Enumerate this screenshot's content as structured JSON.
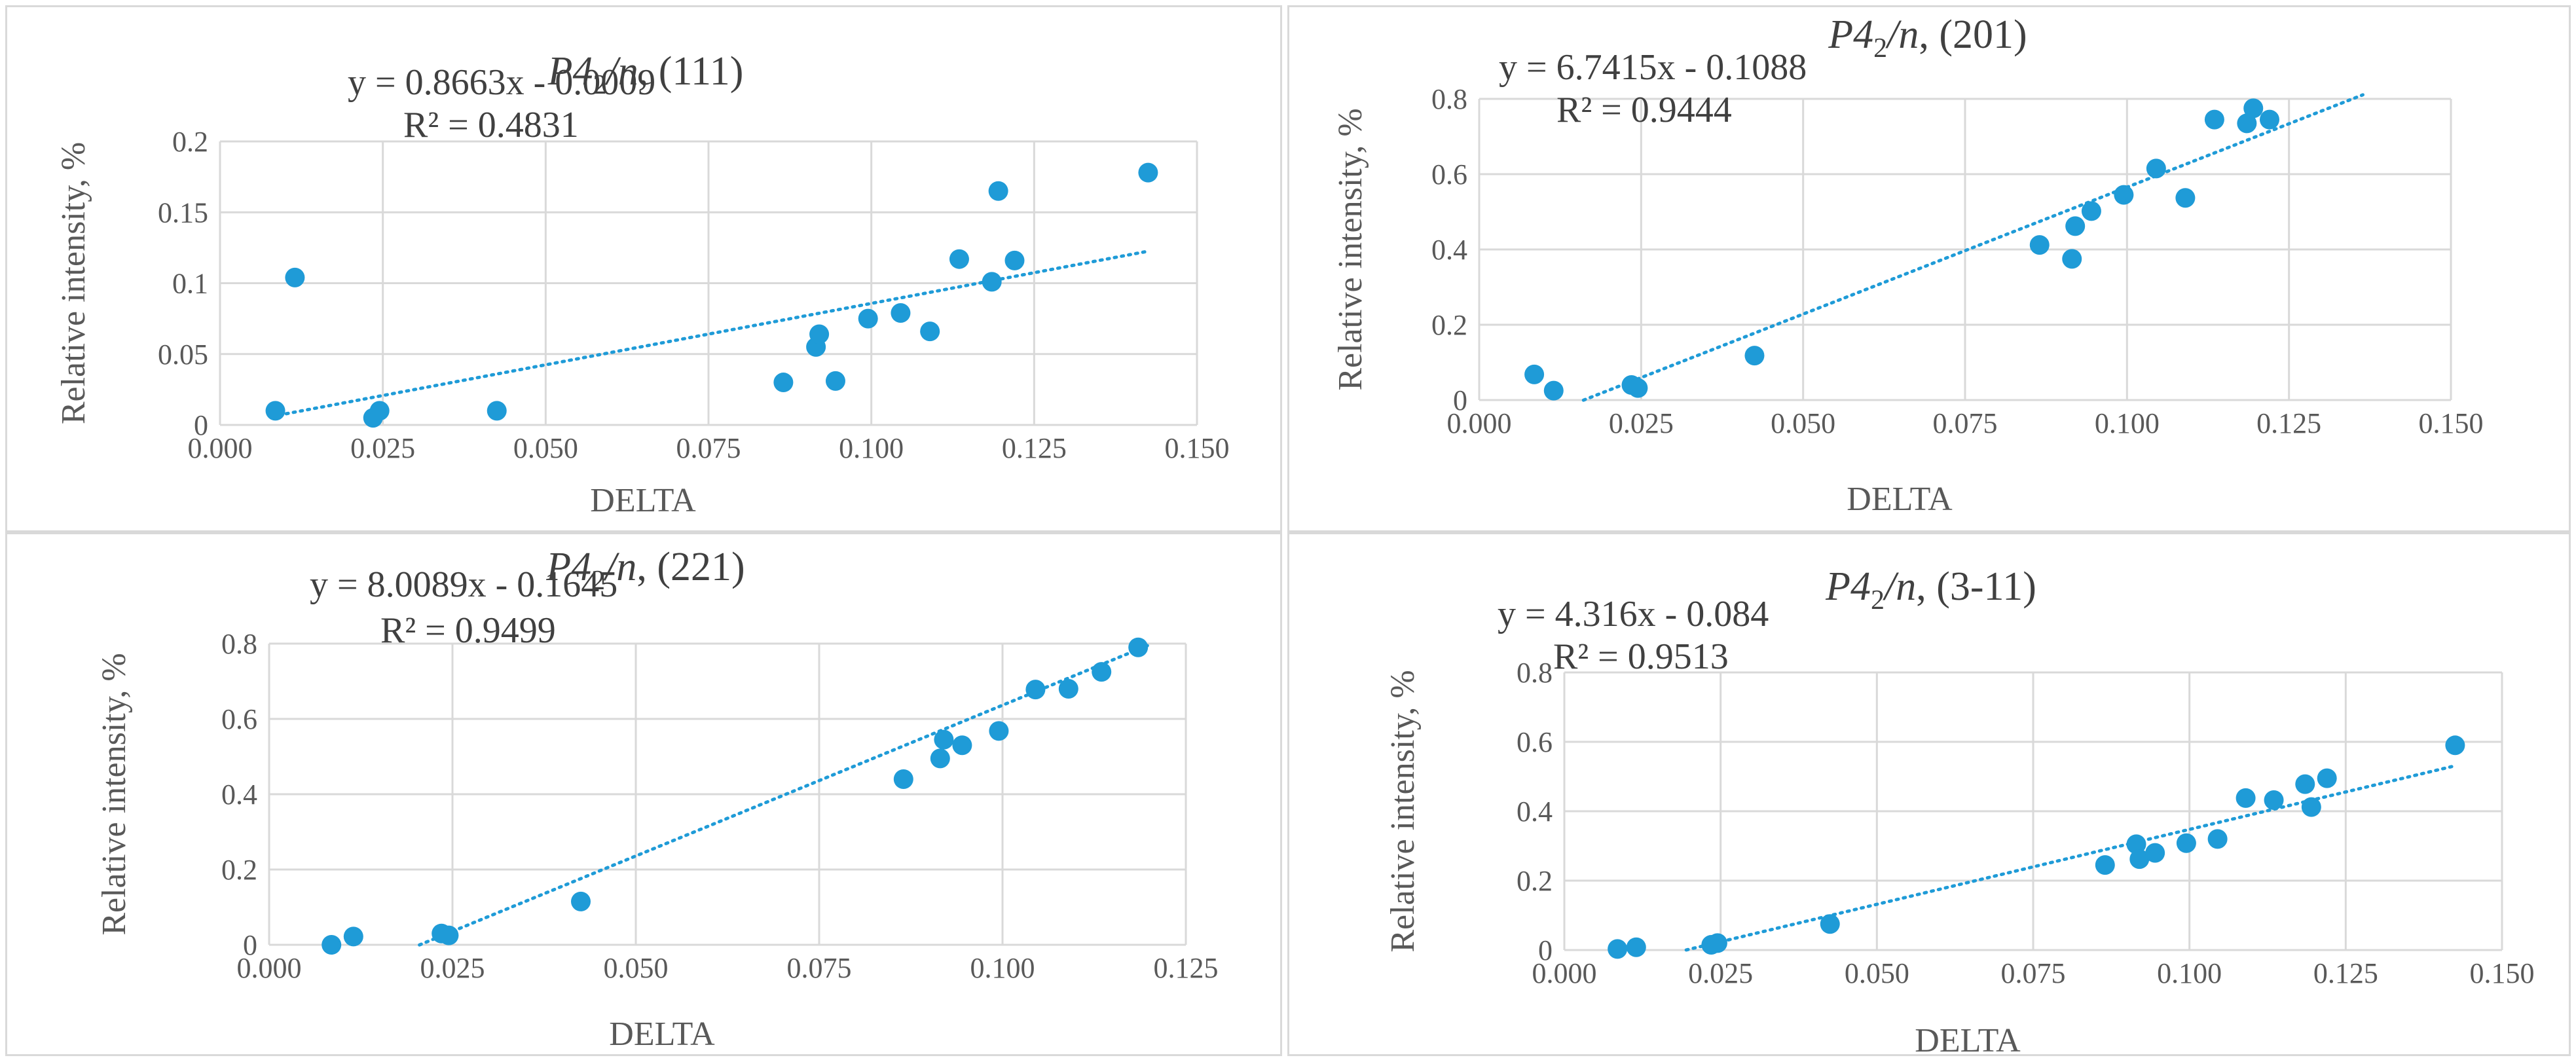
{
  "chart_data": [
    {
      "type": "scatter",
      "title_main": "P4",
      "title_sub": "2",
      "title_italic_tail": "/n",
      "title_rest": ", (111)",
      "xlabel": "DELTA",
      "ylabel": "Relative intensity, %",
      "xlim": [
        0,
        0.15
      ],
      "ylim": [
        0,
        0.2
      ],
      "xticks": [
        "0.000",
        "0.025",
        "0.050",
        "0.075",
        "0.100",
        "0.125",
        "0.150"
      ],
      "yticks": [
        "0",
        "0.05",
        "0.1",
        "0.15",
        "0.2"
      ],
      "grid": true,
      "trendline": {
        "slope": 0.8663,
        "intercept": -0.0009,
        "x_start": 0.008,
        "x_end": 0.142
      },
      "equation": "y = 0.8663x - 0.0009",
      "r2": "R² = 0.4831",
      "marker_color": "#1f9bd7",
      "x": [
        0.0085,
        0.0115,
        0.0235,
        0.0245,
        0.0425,
        0.0865,
        0.0915,
        0.092,
        0.0945,
        0.0995,
        0.1045,
        0.109,
        0.1135,
        0.1185,
        0.1195,
        0.122,
        0.1425
      ],
      "y": [
        0.01,
        0.104,
        0.005,
        0.01,
        0.01,
        0.03,
        0.055,
        0.064,
        0.031,
        0.075,
        0.079,
        0.066,
        0.117,
        0.101,
        0.165,
        0.116,
        0.178
      ]
    },
    {
      "type": "scatter",
      "title_main": "P4",
      "title_sub": "2",
      "title_italic_tail": "/n",
      "title_rest": ", (201)",
      "xlabel": "DELTA",
      "ylabel": "Relative intensity, %",
      "xlim": [
        0,
        0.15
      ],
      "ylim": [
        0,
        0.8
      ],
      "xticks": [
        "0.000",
        "0.025",
        "0.050",
        "0.075",
        "0.100",
        "0.125",
        "0.150"
      ],
      "yticks": [
        "0",
        "0.2",
        "0.4",
        "0.6",
        "0.8"
      ],
      "grid": true,
      "trendline": {
        "slope": 6.7415,
        "intercept": -0.1088,
        "x_start": 0.0161,
        "x_end": 0.1364
      },
      "equation": "y = 6.7415x - 0.1088",
      "r2": "R² = 0.9444",
      "marker_color": "#1f9bd7",
      "x": [
        0.0085,
        0.0115,
        0.0235,
        0.0245,
        0.0425,
        0.0865,
        0.0915,
        0.092,
        0.0945,
        0.0995,
        0.1045,
        0.109,
        0.1135,
        0.1185,
        0.1195,
        0.122
      ],
      "y": [
        0.068,
        0.025,
        0.04,
        0.032,
        0.118,
        0.412,
        0.375,
        0.462,
        0.502,
        0.545,
        0.615,
        0.537,
        0.745,
        0.735,
        0.775,
        0.745
      ]
    },
    {
      "type": "scatter",
      "title_main": "P4",
      "title_sub": "2",
      "title_italic_tail": "/n",
      "title_rest": ", (221)",
      "xlabel": "DELTA",
      "ylabel": "Relative intensity, %",
      "xlim": [
        0,
        0.125
      ],
      "ylim": [
        0,
        0.8
      ],
      "xticks": [
        "0.000",
        "0.025",
        "0.050",
        "0.075",
        "0.100",
        "0.125"
      ],
      "yticks": [
        "0",
        "0.2",
        "0.4",
        "0.6",
        "0.8"
      ],
      "grid": true,
      "trendline": {
        "slope": 8.0089,
        "intercept": -0.1645,
        "x_start": 0.0205,
        "x_end": 0.1198
      },
      "equation": "y = 8.0089x - 0.1645",
      "r2": "R² = 0.9499",
      "marker_color": "#1f9bd7",
      "x": [
        0.0085,
        0.0115,
        0.0235,
        0.0245,
        0.0425,
        0.0865,
        0.0915,
        0.092,
        0.0945,
        0.0995,
        0.1045,
        0.109,
        0.1135,
        0.1185
      ],
      "y": [
        0.0,
        0.022,
        0.03,
        0.025,
        0.115,
        0.44,
        0.495,
        0.545,
        0.53,
        0.568,
        0.678,
        0.68,
        0.725,
        0.79
      ]
    },
    {
      "type": "scatter",
      "title_main": "P4",
      "title_sub": "2",
      "title_italic_tail": "/n",
      "title_rest": ", (3-11)",
      "xlabel": "DELTA",
      "ylabel": "Relative intensity, %",
      "xlim": [
        0,
        0.15
      ],
      "ylim": [
        0,
        0.8
      ],
      "xticks": [
        "0.000",
        "0.025",
        "0.050",
        "0.075",
        "0.100",
        "0.125",
        "0.150"
      ],
      "yticks": [
        "0",
        "0.2",
        "0.4",
        "0.6",
        "0.8"
      ],
      "grid": true,
      "trendline": {
        "slope": 4.316,
        "intercept": -0.084,
        "x_start": 0.0195,
        "x_end": 0.142
      },
      "equation": "y = 4.316x - 0.084",
      "r2": "R² = 0.9513",
      "marker_color": "#1f9bd7",
      "x": [
        0.0085,
        0.0115,
        0.0235,
        0.0245,
        0.0425,
        0.0865,
        0.0915,
        0.092,
        0.0945,
        0.0995,
        0.1045,
        0.109,
        0.1135,
        0.1185,
        0.1195,
        0.122,
        0.1425
      ],
      "y": [
        0.003,
        0.008,
        0.015,
        0.02,
        0.075,
        0.245,
        0.305,
        0.262,
        0.28,
        0.308,
        0.32,
        0.438,
        0.432,
        0.478,
        0.412,
        0.495,
        0.59
      ]
    }
  ]
}
